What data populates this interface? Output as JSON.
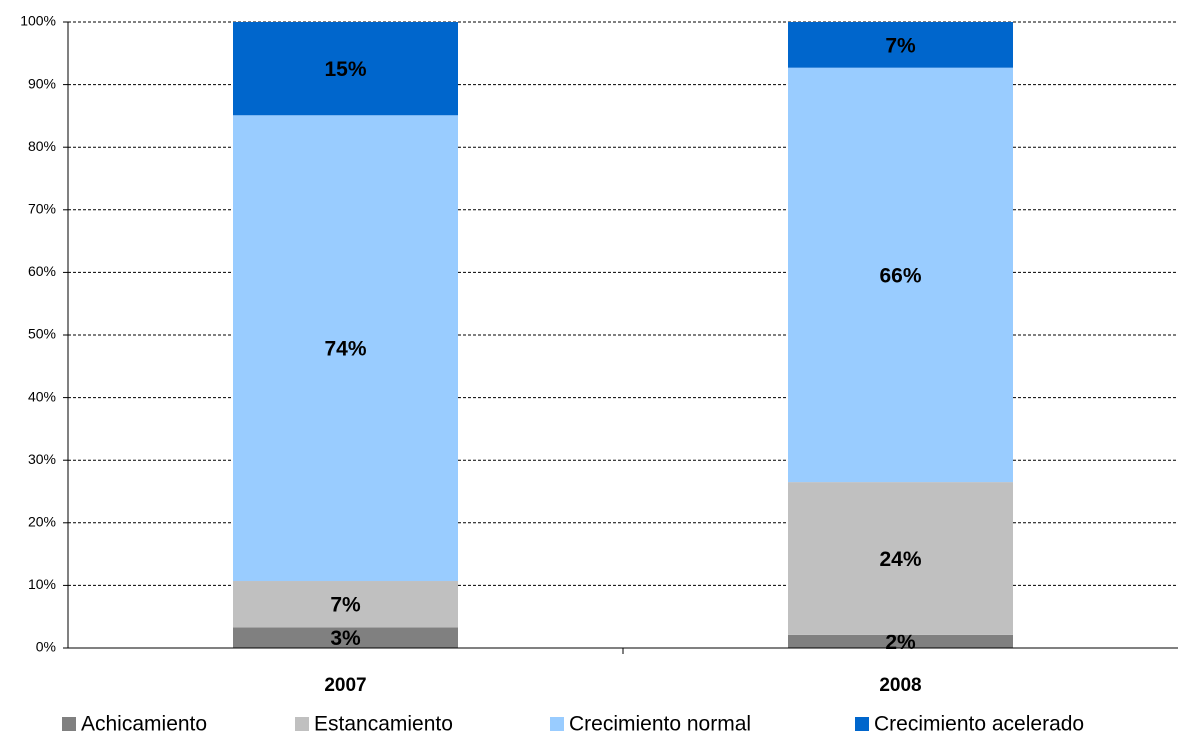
{
  "chart_data": {
    "type": "stacked_bar",
    "categories": [
      "2007",
      "2008"
    ],
    "series": [
      {
        "name": "Achicamiento",
        "color": "#808080",
        "values": [
          3.3,
          2.1
        ],
        "value_labels": [
          "3%",
          "2%"
        ]
      },
      {
        "name": "Estancamiento",
        "color": "#c0c0c0",
        "values": [
          7.4,
          24.4
        ],
        "value_labels": [
          "7%",
          "24%"
        ]
      },
      {
        "name": "Crecimiento normal",
        "color": "#99ccff",
        "values": [
          74.4,
          66.2
        ],
        "value_labels": [
          "74%",
          "66%"
        ]
      },
      {
        "name": "Crecimiento acelerado",
        "color": "#0066cc",
        "values": [
          14.9,
          7.3
        ],
        "value_labels": [
          "15%",
          "7%"
        ]
      }
    ],
    "ylim": [
      0,
      100
    ],
    "yticks": [
      {
        "value": 0,
        "label": "0%"
      },
      {
        "value": 10,
        "label": "10%"
      },
      {
        "value": 20,
        "label": "20%"
      },
      {
        "value": 30,
        "label": "30%"
      },
      {
        "value": 40,
        "label": "40%"
      },
      {
        "value": 50,
        "label": "50%"
      },
      {
        "value": 60,
        "label": "60%"
      },
      {
        "value": 70,
        "label": "70%"
      },
      {
        "value": 80,
        "label": "80%"
      },
      {
        "value": 90,
        "label": "90%"
      },
      {
        "value": 100,
        "label": "100%"
      }
    ],
    "grid": true,
    "legend": "bottom"
  }
}
